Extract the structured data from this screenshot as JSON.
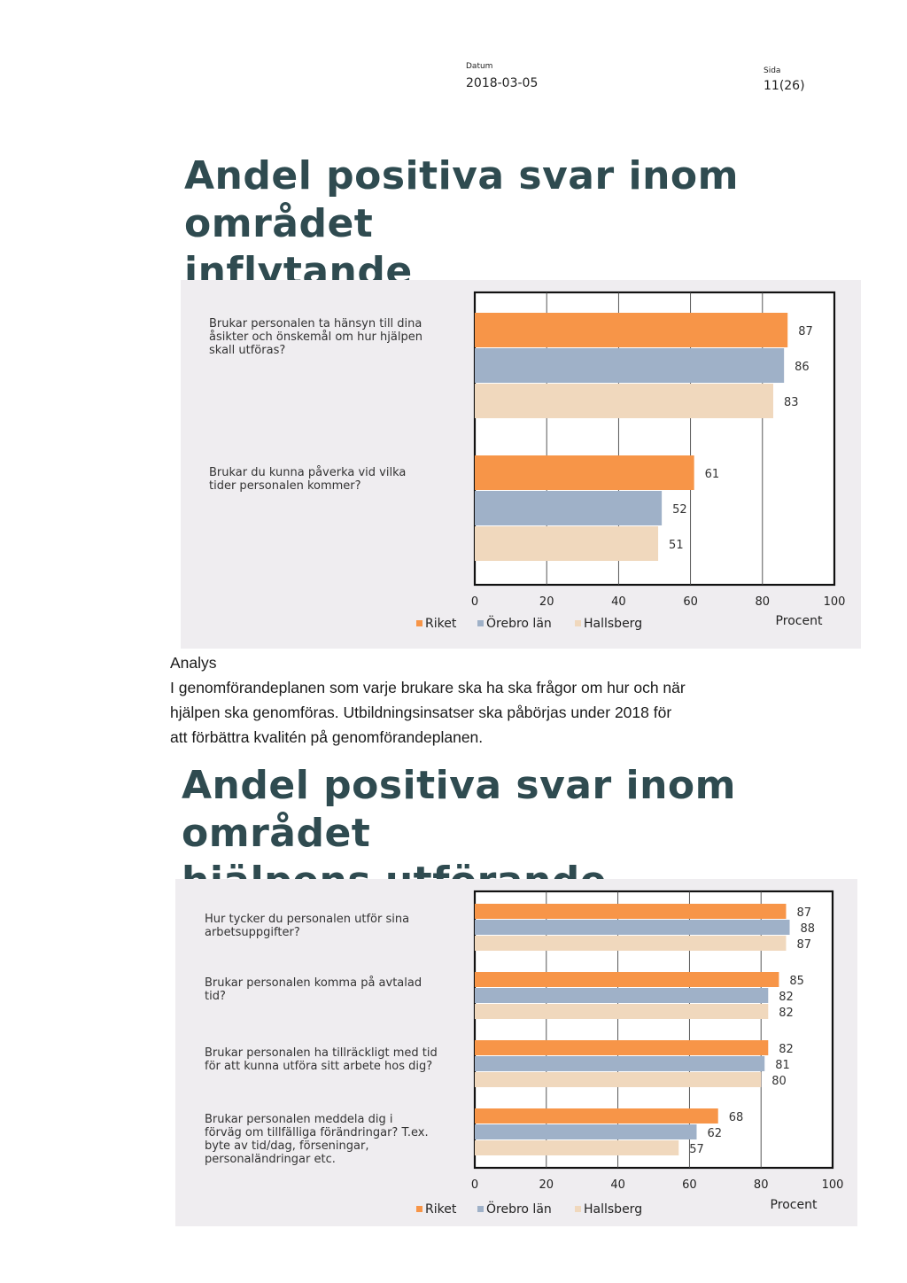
{
  "header": {
    "date_label": "Datum",
    "date_value": "2018-03-05",
    "page_label": "Sida",
    "page_value": "11(26)"
  },
  "section1": {
    "title_line1": "Andel positiva svar inom området",
    "title_line2": "inflytande"
  },
  "section2": {
    "title_line1": "Andel positiva svar inom området",
    "title_line2": "hjälpens utförande"
  },
  "analysis": {
    "heading": "Analys",
    "lines": [
      "I genomförandeplanen som varje brukare ska ha ska frågor om hur och när",
      "hjälpen ska genomföras. Utbildningsinsatser ska påbörjas under 2018 för",
      "att förbättra kvalitén på genomförandeplanen."
    ]
  },
  "colors": {
    "riket": "#f79548",
    "orebro": "#9fb1c8",
    "hallsberg": "#f0d8bd"
  },
  "chart_data": [
    {
      "type": "bar",
      "orientation": "horizontal",
      "categories": [
        [
          "Brukar personalen ta hänsyn till dina",
          "åsikter och önskemål om hur hjälpen",
          "skall utföras?"
        ],
        [
          "Brukar du kunna påverka vid vilka",
          "tider personalen kommer?"
        ]
      ],
      "series": [
        {
          "name": "Riket",
          "values": [
            87,
            61
          ]
        },
        {
          "name": "Örebro län",
          "values": [
            86,
            52
          ]
        },
        {
          "name": "Hallsberg",
          "values": [
            83,
            51
          ]
        }
      ],
      "xticks": [
        "0",
        "20",
        "40",
        "60",
        "80",
        "100"
      ],
      "xlabel": "Procent",
      "xlim": [
        0,
        100
      ],
      "legend": "bottom"
    },
    {
      "type": "bar",
      "orientation": "horizontal",
      "categories": [
        [
          "Hur tycker du personalen utför sina",
          "arbetsuppgifter?"
        ],
        [
          "Brukar personalen komma på avtalad",
          "tid?"
        ],
        [
          "Brukar personalen ha tillräckligt med tid",
          "för att kunna utföra sitt arbete hos dig?"
        ],
        [
          "Brukar personalen meddela dig i",
          "förväg om tillfälliga förändringar? T.ex.",
          "byte av tid/dag, förseningar,",
          "personaländringar etc."
        ]
      ],
      "series": [
        {
          "name": "Riket",
          "values": [
            87,
            85,
            82,
            68
          ]
        },
        {
          "name": "Örebro län",
          "values": [
            88,
            82,
            81,
            62
          ]
        },
        {
          "name": "Hallsberg",
          "values": [
            87,
            82,
            80,
            57
          ]
        }
      ],
      "xticks": [
        "0",
        "20",
        "40",
        "60",
        "80",
        "100"
      ],
      "xlabel": "Procent",
      "xlim": [
        0,
        100
      ],
      "legend": "bottom"
    }
  ]
}
